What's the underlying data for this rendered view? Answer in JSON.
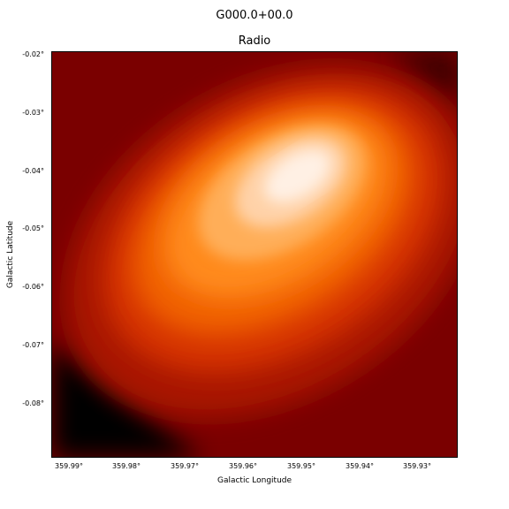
{
  "figure": {
    "title": "G000.0+00.0",
    "panel_title": "Radio"
  },
  "axes": {
    "xlabel": "Galactic Longitude",
    "ylabel": "Galactic Latitude",
    "xticks": [
      "359.99°",
      "359.98°",
      "359.97°",
      "359.96°",
      "359.95°",
      "359.94°",
      "359.93°"
    ],
    "yticks": [
      "-0.02°",
      "-0.03°",
      "-0.04°",
      "-0.05°",
      "-0.06°",
      "-0.07°",
      "-0.08°"
    ]
  },
  "image": {
    "colormap": "gist_heat",
    "description_colors": {
      "low": "#000000",
      "mid_low": "#8a0000",
      "mid": "#e24a00",
      "mid_high": "#ff9a2a",
      "high": "#fff4ec"
    }
  }
}
